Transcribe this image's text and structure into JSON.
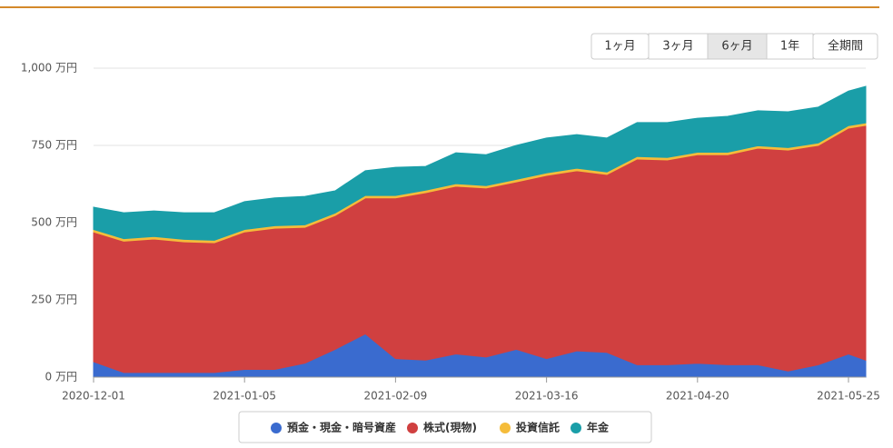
{
  "chart_data": {
    "type": "stacked-area",
    "x": [
      "2020-12-01",
      "2020-12-08",
      "2020-12-15",
      "2020-12-22",
      "2020-12-29",
      "2021-01-05",
      "2021-01-12",
      "2021-01-19",
      "2021-01-26",
      "2021-02-02",
      "2021-02-09",
      "2021-02-16",
      "2021-02-23",
      "2021-03-02",
      "2021-03-09",
      "2021-03-16",
      "2021-03-23",
      "2021-03-30",
      "2021-04-06",
      "2021-04-13",
      "2021-04-20",
      "2021-04-27",
      "2021-05-04",
      "2021-05-11",
      "2021-05-18",
      "2021-05-25",
      "2021-05-29"
    ],
    "xlim": [
      "2020-12-01",
      "2021-05-29"
    ],
    "xticks": [
      "2020-12-01",
      "2021-01-05",
      "2021-02-09",
      "2021-03-16",
      "2021-04-20",
      "2021-05-25"
    ],
    "ylim": [
      0,
      1000
    ],
    "yticks": [
      {
        "value": 0,
        "label": "0 万円"
      },
      {
        "value": 250,
        "label": "250 万円"
      },
      {
        "value": 500,
        "label": "500 万円"
      },
      {
        "value": 750,
        "label": "750 万円"
      },
      {
        "value": 1000,
        "label": "1,000 万円"
      }
    ],
    "grid": true,
    "legend": "bottom",
    "series": [
      {
        "name": "預金・現金・暗号資産",
        "color": "#3a6bcf",
        "values": [
          50,
          15,
          15,
          15,
          15,
          25,
          25,
          45,
          90,
          140,
          60,
          55,
          75,
          65,
          90,
          60,
          85,
          80,
          40,
          40,
          45,
          40,
          40,
          20,
          40,
          75,
          55
        ]
      },
      {
        "name": "株式(現物)",
        "color": "#d04040",
        "values": [
          420,
          425,
          432,
          423,
          420,
          445,
          457,
          440,
          433,
          440,
          520,
          542,
          543,
          547,
          542,
          593,
          583,
          576,
          666,
          663,
          675,
          680,
          701,
          715,
          710,
          731,
          760
        ]
      },
      {
        "name": "投資信託",
        "color": "#f5bc3a",
        "values": [
          8,
          8,
          8,
          8,
          8,
          8,
          8,
          8,
          8,
          8,
          8,
          8,
          8,
          8,
          8,
          8,
          8,
          8,
          8,
          8,
          8,
          8,
          8,
          8,
          8,
          8,
          8
        ]
      },
      {
        "name": "年金",
        "color": "#1a9ea8",
        "values": [
          72,
          84,
          83,
          86,
          89,
          90,
          90,
          92,
          72,
          80,
          91,
          77,
          100,
          100,
          110,
          113,
          109,
          110,
          110,
          113,
          110,
          116,
          113,
          116,
          116,
          112,
          118
        ]
      }
    ],
    "range_buttons": [
      "1ヶ月",
      "3ヶ月",
      "6ヶ月",
      "1年",
      "全期間"
    ],
    "selected_range": "6ヶ月"
  }
}
